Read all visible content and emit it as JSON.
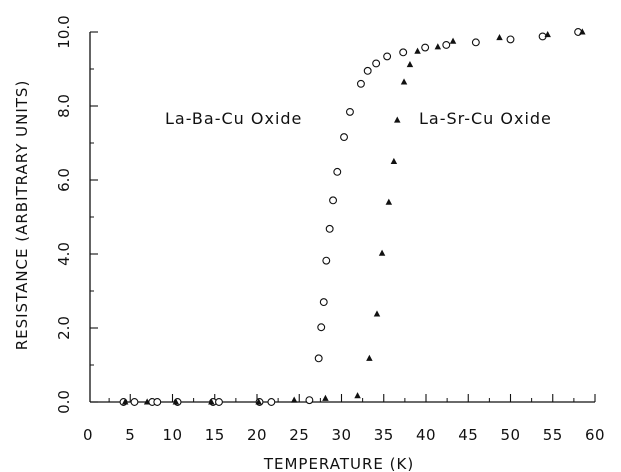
{
  "chart_data": {
    "type": "scatter",
    "title": "",
    "xlabel": "TEMPERATURE (K)",
    "ylabel": "RESISTANCE (ARBITRARY UNITS)",
    "xlim": [
      0,
      60
    ],
    "ylim": [
      0,
      10
    ],
    "x_ticks": [
      "0",
      "5",
      "10",
      "15",
      "20",
      "25",
      "30",
      "35",
      "40",
      "45",
      "50",
      "55",
      "60"
    ],
    "y_ticks": [
      "0.0",
      "2.0",
      "4.0",
      "6.0",
      "8.0",
      "10.0"
    ],
    "grid": false,
    "legend": "none",
    "series": [
      {
        "name": "La-Ba-Cu Oxide",
        "marker": "open-circle",
        "x": [
          4.2,
          5.5,
          7.6,
          8.2,
          10.6,
          14.8,
          15.5,
          20.3,
          21.7,
          26.2,
          27.3,
          27.6,
          27.9,
          28.2,
          28.6,
          29.0,
          29.5,
          30.3,
          31.0,
          32.3,
          33.1,
          34.1,
          35.4,
          37.3,
          39.9,
          42.4,
          45.9,
          50.0,
          53.8,
          58.0
        ],
        "y": [
          0.0,
          0.0,
          0.0,
          0.0,
          0.0,
          0.0,
          0.0,
          0.0,
          0.0,
          0.05,
          1.18,
          2.02,
          2.7,
          3.82,
          4.68,
          5.45,
          6.22,
          7.16,
          7.84,
          8.6,
          8.95,
          9.15,
          9.34,
          9.45,
          9.58,
          9.65,
          9.72,
          9.8,
          9.88,
          10.0
        ]
      },
      {
        "name": "La-Sr-Cu Oxide",
        "marker": "filled-triangle",
        "x": [
          4.4,
          7.0,
          10.4,
          14.6,
          20.2,
          24.4,
          28.1,
          31.9,
          33.3,
          34.2,
          34.8,
          35.6,
          36.2,
          36.6,
          37.4,
          38.1,
          39.0,
          41.4,
          43.2,
          48.7,
          54.4,
          58.5
        ],
        "y": [
          0.0,
          0.0,
          0.0,
          0.0,
          0.0,
          0.05,
          0.1,
          0.17,
          1.18,
          2.38,
          4.02,
          5.4,
          6.5,
          7.62,
          8.65,
          9.12,
          9.48,
          9.6,
          9.75,
          9.85,
          9.93,
          10.0
        ]
      }
    ]
  }
}
